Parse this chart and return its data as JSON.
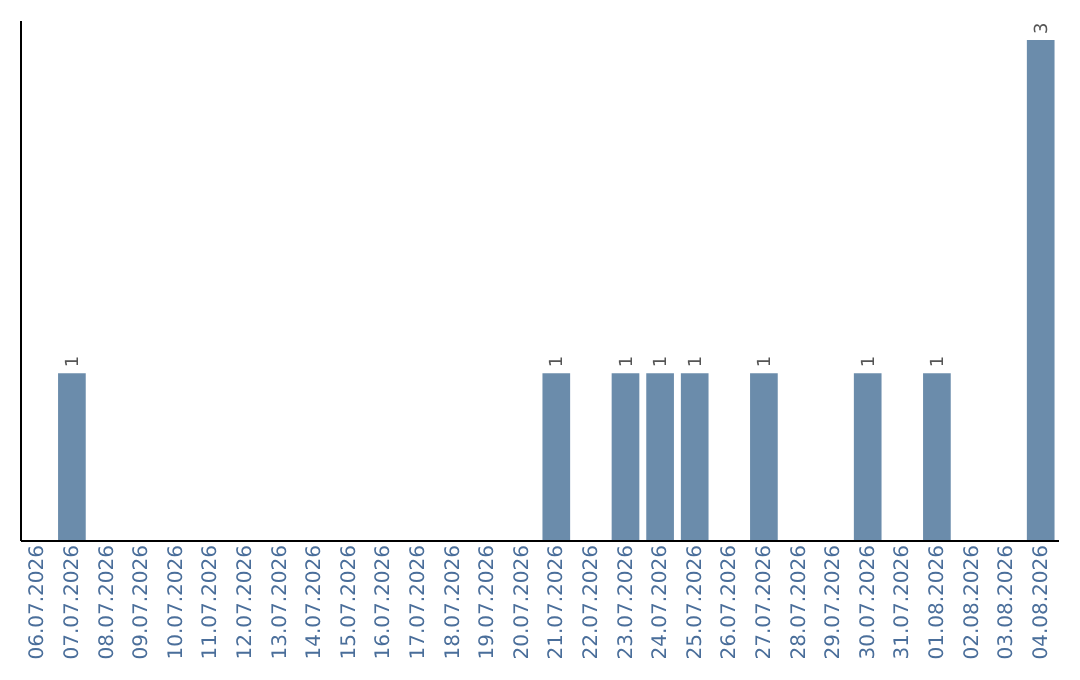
{
  "chart_data": {
    "type": "bar",
    "categories": [
      "06.07.2026",
      "07.07.2026",
      "08.07.2026",
      "09.07.2026",
      "10.07.2026",
      "11.07.2026",
      "12.07.2026",
      "13.07.2026",
      "14.07.2026",
      "15.07.2026",
      "16.07.2026",
      "17.07.2026",
      "18.07.2026",
      "19.07.2026",
      "20.07.2026",
      "21.07.2026",
      "22.07.2026",
      "23.07.2026",
      "24.07.2026",
      "25.07.2026",
      "26.07.2026",
      "27.07.2026",
      "28.07.2026",
      "29.07.2026",
      "30.07.2026",
      "31.07.2026",
      "01.08.2026",
      "02.08.2026",
      "03.08.2026",
      "04.08.2026"
    ],
    "values": [
      0,
      1,
      0,
      0,
      0,
      0,
      0,
      0,
      0,
      0,
      0,
      0,
      0,
      0,
      0,
      1,
      0,
      1,
      1,
      1,
      0,
      1,
      0,
      0,
      1,
      0,
      1,
      0,
      0,
      3
    ],
    "value_labels": [
      null,
      "1",
      null,
      null,
      null,
      null,
      null,
      null,
      null,
      null,
      null,
      null,
      null,
      null,
      null,
      "1",
      null,
      "1",
      "1",
      "1",
      null,
      "1",
      null,
      null,
      "1",
      null,
      "1",
      null,
      null,
      "3"
    ],
    "color": "#6b8cab",
    "ylim": [
      0,
      3.12
    ],
    "tick_labels": "x",
    "grid": false
  }
}
